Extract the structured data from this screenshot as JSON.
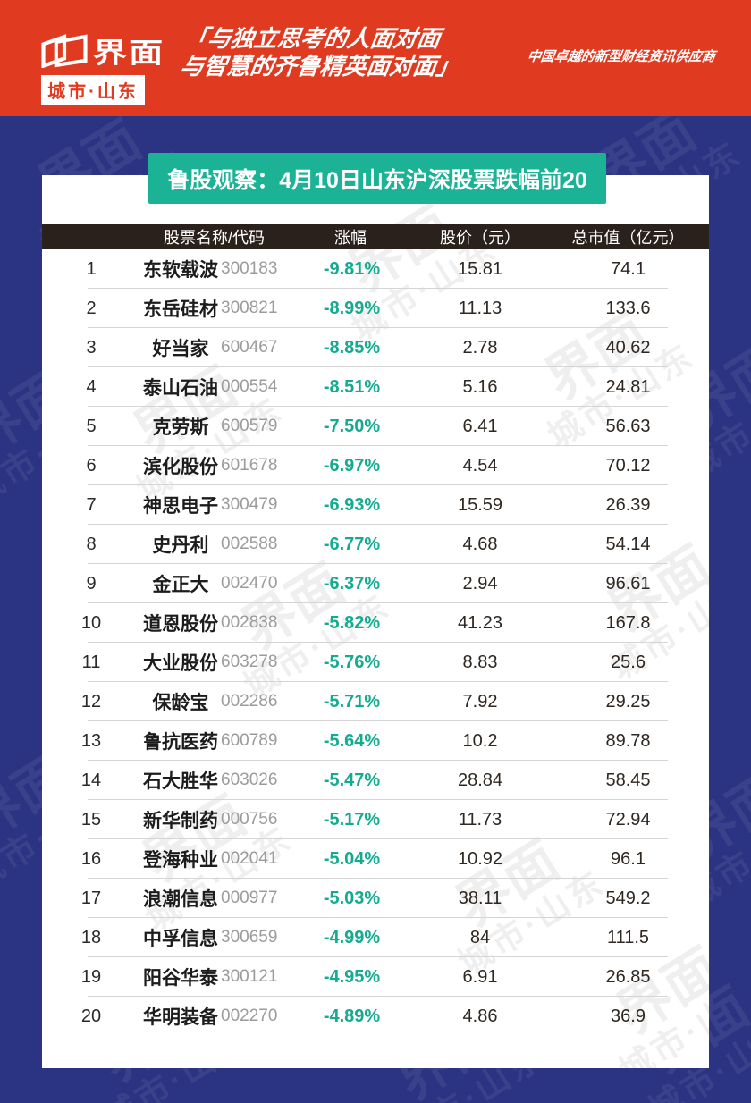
{
  "masthead": {
    "brand": "界面",
    "brand_sub": "城市·山东",
    "quote_line1": "「与独立思考的人面对面",
    "quote_line2": "与智慧的齐鲁精英面对面」",
    "tagline": "中国卓越的新型财经资讯供应商"
  },
  "banner_title": "鲁股观察：4月10日山东沪深股票跌幅前20",
  "watermark": {
    "line1": "界面",
    "line2": "城市·山东"
  },
  "colors": {
    "masthead_red": "#E03A20",
    "page_blue": "#2B3383",
    "banner_green": "#1CB296",
    "table_header_dark": "#2B211C",
    "change_teal": "#14AB90"
  },
  "chart_data": {
    "type": "table",
    "title": "鲁股观察：4月10日山东沪深股票跌幅前20",
    "columns": [
      "股票名称/代码",
      "涨幅",
      "股价（元）",
      "总市值（亿元）"
    ],
    "rows": [
      {
        "rank": "1",
        "name": "东软载波",
        "code": "300183",
        "change": "-9.81%",
        "price": "15.81",
        "cap": "74.1"
      },
      {
        "rank": "2",
        "name": "东岳硅材",
        "code": "300821",
        "change": "-8.99%",
        "price": "11.13",
        "cap": "133.6"
      },
      {
        "rank": "3",
        "name": "好当家",
        "code": "600467",
        "change": "-8.85%",
        "price": "2.78",
        "cap": "40.62"
      },
      {
        "rank": "4",
        "name": "泰山石油",
        "code": "000554",
        "change": "-8.51%",
        "price": "5.16",
        "cap": "24.81"
      },
      {
        "rank": "5",
        "name": "克劳斯",
        "code": "600579",
        "change": "-7.50%",
        "price": "6.41",
        "cap": "56.63"
      },
      {
        "rank": "6",
        "name": "滨化股份",
        "code": "601678",
        "change": "-6.97%",
        "price": "4.54",
        "cap": "70.12"
      },
      {
        "rank": "7",
        "name": "神思电子",
        "code": "300479",
        "change": "-6.93%",
        "price": "15.59",
        "cap": "26.39"
      },
      {
        "rank": "8",
        "name": "史丹利",
        "code": "002588",
        "change": "-6.77%",
        "price": "4.68",
        "cap": "54.14"
      },
      {
        "rank": "9",
        "name": "金正大",
        "code": "002470",
        "change": "-6.37%",
        "price": "2.94",
        "cap": "96.61"
      },
      {
        "rank": "10",
        "name": "道恩股份",
        "code": "002838",
        "change": "-5.82%",
        "price": "41.23",
        "cap": "167.8"
      },
      {
        "rank": "11",
        "name": "大业股份",
        "code": "603278",
        "change": "-5.76%",
        "price": "8.83",
        "cap": "25.6"
      },
      {
        "rank": "12",
        "name": "保龄宝",
        "code": "002286",
        "change": "-5.71%",
        "price": "7.92",
        "cap": "29.25"
      },
      {
        "rank": "13",
        "name": "鲁抗医药",
        "code": "600789",
        "change": "-5.64%",
        "price": "10.2",
        "cap": "89.78"
      },
      {
        "rank": "14",
        "name": "石大胜华",
        "code": "603026",
        "change": "-5.47%",
        "price": "28.84",
        "cap": "58.45"
      },
      {
        "rank": "15",
        "name": "新华制药",
        "code": "000756",
        "change": "-5.17%",
        "price": "11.73",
        "cap": "72.94"
      },
      {
        "rank": "16",
        "name": "登海种业",
        "code": "002041",
        "change": "-5.04%",
        "price": "10.92",
        "cap": "96.1"
      },
      {
        "rank": "17",
        "name": "浪潮信息",
        "code": "000977",
        "change": "-5.03%",
        "price": "38.11",
        "cap": "549.2"
      },
      {
        "rank": "18",
        "name": "中孚信息",
        "code": "300659",
        "change": "-4.99%",
        "price": "84",
        "cap": "111.5"
      },
      {
        "rank": "19",
        "name": "阳谷华泰",
        "code": "300121",
        "change": "-4.95%",
        "price": "6.91",
        "cap": "26.85"
      },
      {
        "rank": "20",
        "name": "华明装备",
        "code": "002270",
        "change": "-4.89%",
        "price": "4.86",
        "cap": "36.9"
      }
    ]
  }
}
